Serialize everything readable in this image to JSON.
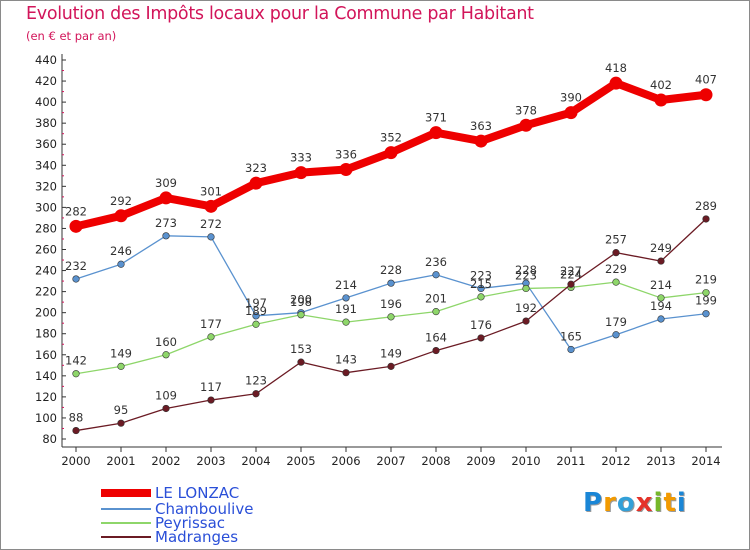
{
  "chart_data": {
    "type": "line",
    "title": "Evolution des Impôts locaux pour la Commune par Habitant",
    "subtitle": "(en € et par an)",
    "categories": [
      "2000",
      "2001",
      "2002",
      "2003",
      "2004",
      "2005",
      "2006",
      "2007",
      "2008",
      "2009",
      "2010",
      "2011",
      "2012",
      "2013",
      "2014"
    ],
    "ylim": [
      80,
      440
    ],
    "yticks": [
      80,
      100,
      120,
      140,
      160,
      180,
      200,
      220,
      240,
      260,
      280,
      300,
      320,
      340,
      360,
      380,
      400,
      420,
      440
    ],
    "grid": false,
    "legend_position": "bottom-left",
    "series": [
      {
        "name": "LE LONZAC",
        "color": "#ee0000",
        "values": [
          282,
          292,
          309,
          301,
          323,
          333,
          336,
          352,
          371,
          363,
          378,
          390,
          418,
          402,
          407
        ]
      },
      {
        "name": "Chamboulive",
        "color": "#5a92cf",
        "values": [
          232,
          246,
          273,
          272,
          197,
          200,
          214,
          228,
          236,
          223,
          228,
          165,
          179,
          194,
          199
        ]
      },
      {
        "name": "Peyrissac",
        "color": "#8ed66a",
        "values": [
          142,
          149,
          160,
          177,
          189,
          198,
          191,
          196,
          201,
          215,
          223,
          224,
          229,
          214,
          219
        ]
      },
      {
        "name": "Madranges",
        "color": "#6b1b24",
        "values": [
          88,
          95,
          109,
          117,
          123,
          153,
          143,
          149,
          164,
          176,
          192,
          227,
          257,
          249,
          289
        ]
      }
    ]
  },
  "brand": {
    "letters": [
      "P",
      "r",
      "o",
      "x",
      "i",
      "t",
      "i"
    ],
    "colors": [
      "#1a86d6",
      "#f29a00",
      "#33a0d8",
      "#e5332a",
      "#76b82a",
      "#f29a00",
      "#1a86d6"
    ]
  }
}
